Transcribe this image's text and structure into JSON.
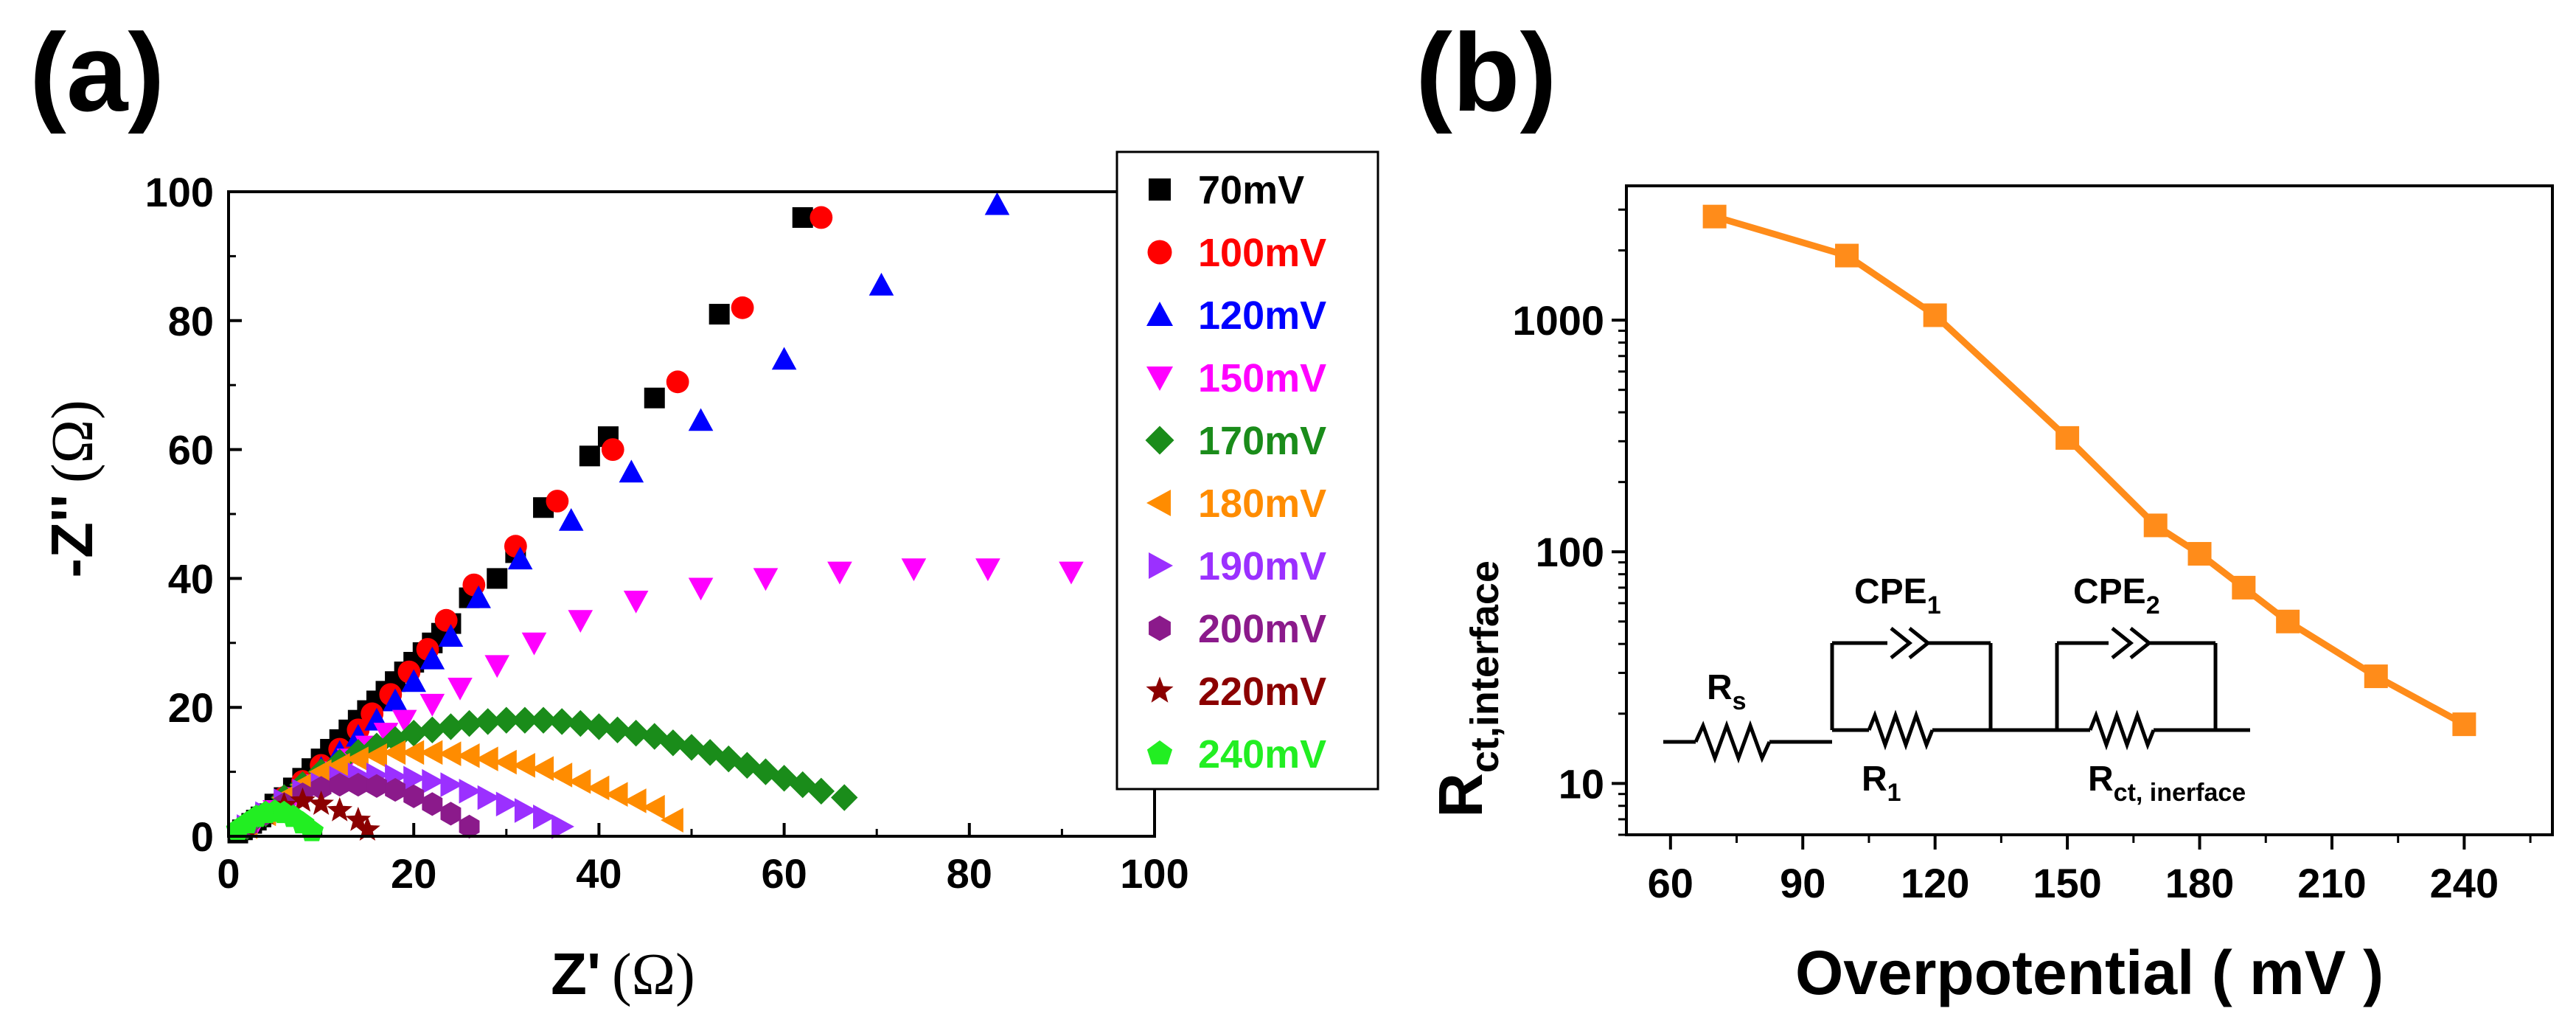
{
  "panel_labels": {
    "a": "(a)",
    "b": "(b)"
  },
  "omega": "Ω",
  "chart_data": [
    {
      "type": "scatter",
      "panel": "(a)",
      "xlabel_main": "Z'",
      "ylabel_main": "-Z''",
      "xlabel_unit": "(Ω)",
      "ylabel_unit": "(Ω)",
      "xlim": [
        0,
        100
      ],
      "ylim": [
        0,
        100
      ],
      "xticks": [
        0,
        20,
        40,
        60,
        80,
        100
      ],
      "yticks": [
        0,
        20,
        40,
        60,
        80,
        100
      ],
      "legend_position": "right",
      "series": [
        {
          "name": "70mV",
          "marker": "square",
          "color": "#000000",
          "x": [
            1,
            1.5,
            2,
            2.5,
            3,
            3.5,
            4,
            5,
            6,
            7,
            8,
            9,
            10,
            11,
            12,
            13,
            14,
            15,
            16,
            17,
            18,
            19,
            20,
            21,
            22,
            23,
            24,
            26,
            29,
            31,
            34,
            39,
            41,
            46,
            53,
            62
          ],
          "y": [
            0.5,
            1,
            1.5,
            2,
            2.5,
            3,
            3.5,
            5,
            6,
            7.5,
            9,
            10.5,
            12,
            13.5,
            15,
            16.5,
            18,
            19.5,
            21,
            22.5,
            24,
            25.5,
            27,
            28.5,
            30,
            31.5,
            33,
            37,
            40,
            44,
            51,
            59,
            62,
            68,
            81,
            96
          ]
        },
        {
          "name": "100mV",
          "marker": "circle",
          "color": "#ff0000",
          "x": [
            6,
            8,
            10,
            12,
            14,
            15.5,
            17.5,
            19.5,
            21.5,
            23.5,
            26.5,
            31,
            35.5,
            41.5,
            48.5,
            55.5,
            64
          ],
          "y": [
            6,
            8.5,
            11,
            13.5,
            16.5,
            19,
            22,
            25.5,
            29,
            33.5,
            39,
            45,
            52,
            60,
            70.5,
            82,
            96
          ]
        },
        {
          "name": "120mV",
          "marker": "triangle-up",
          "color": "#0000ff",
          "x": [
            6,
            8,
            10,
            12,
            14,
            16,
            18,
            20,
            22,
            24,
            27,
            31.5,
            37,
            43.5,
            51,
            60,
            70.5,
            83
          ],
          "y": [
            6,
            8,
            10.5,
            13,
            15.5,
            18,
            21,
            24,
            27.5,
            31,
            37,
            43,
            49,
            56.5,
            64.5,
            74,
            85.5,
            98
          ]
        },
        {
          "name": "150mV",
          "marker": "triangle-down",
          "color": "#ff00ff",
          "x": [
            3,
            5,
            7,
            9,
            11,
            13,
            15,
            17,
            19,
            22,
            25,
            29,
            33,
            38,
            44,
            51,
            58,
            66,
            74,
            82,
            91
          ],
          "y": [
            2,
            4,
            6,
            8,
            10,
            12,
            14,
            16,
            18,
            20.5,
            23,
            26.5,
            30,
            33.5,
            36.5,
            38.5,
            40,
            41,
            41.5,
            41.5,
            41
          ]
        },
        {
          "name": "170mV",
          "marker": "diamond",
          "color": "#1a8c1a",
          "x": [
            2,
            4,
            6,
            8,
            10,
            12,
            14,
            16,
            18,
            20,
            22,
            24,
            26,
            28,
            30,
            32,
            34,
            36,
            38,
            40,
            42,
            44,
            46,
            48,
            50,
            52,
            54,
            56,
            58,
            60,
            62,
            64,
            66.5
          ],
          "y": [
            1.5,
            3.5,
            6,
            8,
            10,
            11.5,
            13,
            14,
            15,
            16,
            16.5,
            17,
            17.5,
            17.8,
            18,
            18,
            18,
            17.8,
            17.5,
            17,
            16.5,
            16,
            15.5,
            14.5,
            13.8,
            13,
            12,
            11,
            10,
            9,
            8,
            7,
            6
          ]
        },
        {
          "name": "180mV",
          "marker": "triangle-left",
          "color": "#ff8c00",
          "x": [
            2,
            4,
            6,
            8,
            10,
            12,
            14,
            16,
            18,
            20,
            22,
            24,
            26,
            28,
            30,
            32,
            34,
            36,
            38,
            40,
            42,
            44,
            46,
            48
          ],
          "y": [
            1.5,
            3.5,
            6,
            8,
            10,
            11,
            12,
            12.5,
            13,
            13,
            13,
            12.8,
            12.5,
            12,
            11.5,
            11,
            10.5,
            9.5,
            8.5,
            7.5,
            6.5,
            5.5,
            4.5,
            2.5
          ]
        },
        {
          "name": "190mV",
          "marker": "triangle-right",
          "color": "#9b30ff",
          "x": [
            2,
            4,
            6,
            8,
            10,
            12,
            14,
            16,
            18,
            20,
            22,
            24,
            26,
            28,
            30,
            32,
            34,
            36
          ],
          "y": [
            1.5,
            3.5,
            5.5,
            7,
            8,
            9,
            9.5,
            9.5,
            9.3,
            9,
            8.5,
            8,
            7,
            6,
            5,
            4,
            3,
            1.5
          ]
        },
        {
          "name": "200mV",
          "marker": "hexagon",
          "color": "#8b1a8b",
          "x": [
            2,
            4,
            6,
            8,
            10,
            12,
            14,
            16,
            18,
            20,
            22,
            24,
            26
          ],
          "y": [
            1.5,
            3.5,
            5,
            6.5,
            7.5,
            8,
            8,
            7.8,
            7.2,
            6.2,
            5,
            3.5,
            1.5
          ]
        },
        {
          "name": "220mV",
          "marker": "star",
          "color": "#8b0000",
          "x": [
            2,
            4,
            6,
            8,
            10,
            12,
            14,
            15
          ],
          "y": [
            1.5,
            3.5,
            4.8,
            5.5,
            5,
            4,
            2.5,
            1
          ]
        },
        {
          "name": "240mV",
          "marker": "pentagon",
          "color": "#22ee22",
          "x": [
            1,
            2,
            3,
            4,
            5,
            6,
            7,
            8,
            9
          ],
          "y": [
            1,
            2,
            3,
            3.6,
            3.8,
            3.6,
            3,
            2,
            0.8
          ]
        }
      ]
    },
    {
      "type": "line",
      "panel": "(b)",
      "xlabel": "Overpotential ( mV )",
      "ylabel_main": "R",
      "ylabel_sub": "ct,interface",
      "yscale": "log",
      "xlim": [
        50,
        260
      ],
      "ylim": [
        6,
        3800
      ],
      "xticks": [
        60,
        90,
        120,
        150,
        180,
        210,
        240
      ],
      "yticks": [
        10,
        100,
        1000
      ],
      "ytick_labels": [
        "10",
        "100",
        "1000"
      ],
      "series": [
        {
          "name": "Rct,interface",
          "marker": "square",
          "color": "#ff8c1a",
          "x": [
            70,
            100,
            120,
            150,
            170,
            180,
            190,
            200,
            220,
            240
          ],
          "y": [
            2800,
            1900,
            1050,
            310,
            130,
            98,
            70,
            50,
            29,
            18
          ]
        }
      ]
    }
  ],
  "circuit": {
    "rs": "R",
    "rs_sub": "s",
    "cpe1": "CPE",
    "cpe1_sub": "1",
    "r1": "R",
    "r1_sub": "1",
    "cpe2": "CPE",
    "cpe2_sub": "2",
    "rct": "R",
    "rct_sub": "ct, inerface"
  }
}
